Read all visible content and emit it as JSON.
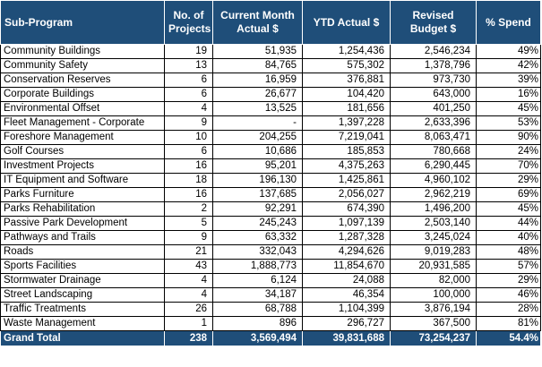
{
  "header": {
    "sub_program": "Sub-Program",
    "projects": "No. of Projects",
    "current_month": "Current Month Actual $",
    "ytd": "YTD Actual $",
    "revised_budget": "Revised Budget $",
    "spend": "% Spend"
  },
  "rows": [
    {
      "name": "Community Buildings",
      "projects": "19",
      "current": "51,935",
      "ytd": "1,254,436",
      "budget": "2,546,234",
      "spend": "49%"
    },
    {
      "name": "Community Safety",
      "projects": "13",
      "current": "84,765",
      "ytd": "575,302",
      "budget": "1,378,796",
      "spend": "42%"
    },
    {
      "name": "Conservation Reserves",
      "projects": "6",
      "current": "16,959",
      "ytd": "376,881",
      "budget": "973,730",
      "spend": "39%"
    },
    {
      "name": "Corporate Buildings",
      "projects": "6",
      "current": "26,677",
      "ytd": "104,420",
      "budget": "643,000",
      "spend": "16%"
    },
    {
      "name": "Environmental Offset",
      "projects": "4",
      "current": "13,525",
      "ytd": "181,656",
      "budget": "401,250",
      "spend": "45%"
    },
    {
      "name": "Fleet Management - Corporate",
      "projects": "9",
      "current": "-",
      "ytd": "1,397,228",
      "budget": "2,633,396",
      "spend": "53%"
    },
    {
      "name": "Foreshore Management",
      "projects": "10",
      "current": "204,255",
      "ytd": "7,219,041",
      "budget": "8,063,471",
      "spend": "90%"
    },
    {
      "name": "Golf Courses",
      "projects": "6",
      "current": "10,686",
      "ytd": "185,853",
      "budget": "780,668",
      "spend": "24%"
    },
    {
      "name": "Investment Projects",
      "projects": "16",
      "current": "95,201",
      "ytd": "4,375,263",
      "budget": "6,290,445",
      "spend": "70%"
    },
    {
      "name": "IT Equipment and Software",
      "projects": "18",
      "current": "196,130",
      "ytd": "1,425,861",
      "budget": "4,960,102",
      "spend": "29%"
    },
    {
      "name": "Parks Furniture",
      "projects": "16",
      "current": "137,685",
      "ytd": "2,056,027",
      "budget": "2,962,219",
      "spend": "69%"
    },
    {
      "name": "Parks Rehabilitation",
      "projects": "2",
      "current": "92,291",
      "ytd": "674,390",
      "budget": "1,496,200",
      "spend": "45%"
    },
    {
      "name": "Passive Park Development",
      "projects": "5",
      "current": "245,243",
      "ytd": "1,097,139",
      "budget": "2,503,140",
      "spend": "44%"
    },
    {
      "name": "Pathways and Trails",
      "projects": "9",
      "current": "63,332",
      "ytd": "1,287,328",
      "budget": "3,245,024",
      "spend": "40%"
    },
    {
      "name": "Roads",
      "projects": "21",
      "current": "332,043",
      "ytd": "4,294,626",
      "budget": "9,019,283",
      "spend": "48%"
    },
    {
      "name": "Sports Facilities",
      "projects": "43",
      "current": "1,888,773",
      "ytd": "11,854,670",
      "budget": "20,931,585",
      "spend": "57%"
    },
    {
      "name": "Stormwater Drainage",
      "projects": "4",
      "current": "6,124",
      "ytd": "24,088",
      "budget": "82,000",
      "spend": "29%"
    },
    {
      "name": "Street Landscaping",
      "projects": "4",
      "current": "34,187",
      "ytd": "46,354",
      "budget": "100,000",
      "spend": "46%"
    },
    {
      "name": "Traffic Treatments",
      "projects": "26",
      "current": "68,788",
      "ytd": "1,104,399",
      "budget": "3,876,194",
      "spend": "28%"
    },
    {
      "name": "Waste Management",
      "projects": "1",
      "current": "896",
      "ytd": "296,727",
      "budget": "367,500",
      "spend": "81%"
    }
  ],
  "total": {
    "name": "Grand Total",
    "projects": "238",
    "current": "3,569,494",
    "ytd": "39,831,688",
    "budget": "73,254,237",
    "spend": "54.4%"
  },
  "colors": {
    "header_bg": "#1f4e79",
    "header_text": "#ffffff"
  }
}
